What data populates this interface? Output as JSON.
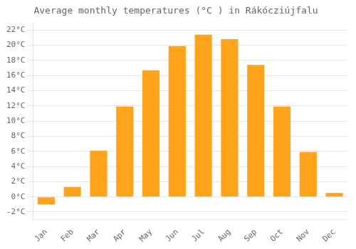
{
  "chart_data": {
    "type": "bar",
    "title": "Average monthly temperatures (°C ) in Rákócziújfalu",
    "categories": [
      "Jan",
      "Feb",
      "Mar",
      "Apr",
      "May",
      "Jun",
      "Jul",
      "Aug",
      "Sep",
      "Oct",
      "Nov",
      "Dec"
    ],
    "values": [
      -1.0,
      1.3,
      6.1,
      11.9,
      16.7,
      19.9,
      21.4,
      20.8,
      17.4,
      11.9,
      5.9,
      0.5
    ],
    "color": "#FFA31A",
    "ylim": [
      -3,
      23
    ],
    "yticks": [
      {
        "value": -2,
        "label": "-2°C"
      },
      {
        "value": 0,
        "label": "0°C"
      },
      {
        "value": 2,
        "label": "2°C"
      },
      {
        "value": 4,
        "label": "4°C"
      },
      {
        "value": 6,
        "label": "6°C"
      },
      {
        "value": 8,
        "label": "8°C"
      },
      {
        "value": 10,
        "label": "10°C"
      },
      {
        "value": 12,
        "label": "12°C"
      },
      {
        "value": 14,
        "label": "14°C"
      },
      {
        "value": 16,
        "label": "16°C"
      },
      {
        "value": 18,
        "label": "18°C"
      },
      {
        "value": 20,
        "label": "20°C"
      },
      {
        "value": 22,
        "label": "22°C"
      }
    ],
    "grid": true
  }
}
